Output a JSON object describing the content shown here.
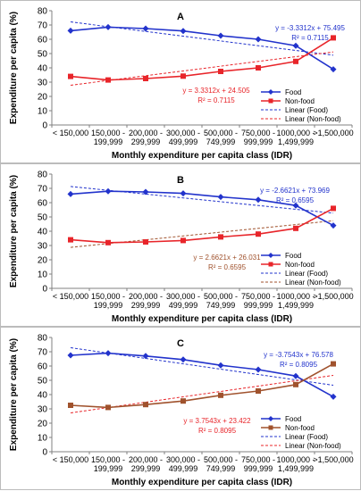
{
  "chart_data": [
    {
      "type": "line",
      "panel_label": "A",
      "categories": [
        "< 150,000",
        "150,000 -|199,999",
        "200,000 -|299,999",
        "300,000 -|499,999",
        "500,000 -|749,999",
        "750,000 -|999,999",
        "1000,000 -|1,499,999",
        ">1,500,000"
      ],
      "xlabel": "Monthly expenditure per capita class (IDR)",
      "ylabel": "Expenditure per capita (%)",
      "ylim": [
        0,
        80
      ],
      "yticks": [
        0,
        10,
        20,
        30,
        40,
        50,
        60,
        70,
        80
      ],
      "grid": false,
      "legend_position": "bottom-right",
      "series": [
        {
          "name": "Food",
          "color": "#2233cc",
          "marker": "diamond",
          "values": [
            66,
            68.5,
            67.5,
            65.8,
            62.5,
            60,
            55.5,
            39
          ]
        },
        {
          "name": "Non-food",
          "color": "#e8252a",
          "marker": "square",
          "values": [
            34,
            31.5,
            32.5,
            34.2,
            37.5,
            40,
            44.5,
            61
          ]
        }
      ],
      "trendlines": [
        {
          "name": "Linear (Food)",
          "color": "#2233cc",
          "slope": -3.3312,
          "intercept": 75.495,
          "equation": "y = -3.3312x + 75.495",
          "r2": "R² = 0.7115"
        },
        {
          "name": "Linear (Non-food)",
          "color": "#e8252a",
          "slope": 3.3312,
          "intercept": 24.505,
          "equation": "y = 3.3312x + 24.505",
          "r2": "R² = 0.7115"
        }
      ]
    },
    {
      "type": "line",
      "panel_label": "B",
      "categories": [
        "< 150,000",
        "150,000 -|199,999",
        "200,000 -|299,999",
        "300,000 -|499,999",
        "500,000 -|749,999",
        "750,000 -|999,999",
        "1000,000 -|1,499,999",
        ">1,500,000"
      ],
      "xlabel": "Monthly expenditure per capita class (IDR)",
      "ylabel": "Expenditure per capita (%)",
      "ylim": [
        0,
        80
      ],
      "yticks": [
        0,
        10,
        20,
        30,
        40,
        50,
        60,
        70,
        80
      ],
      "grid": false,
      "legend_position": "bottom-right",
      "series": [
        {
          "name": "Food",
          "color": "#2233cc",
          "marker": "diamond",
          "values": [
            66,
            68,
            67.5,
            66.5,
            64,
            62,
            58,
            44
          ]
        },
        {
          "name": "Non-food",
          "color": "#e8252a",
          "marker": "square",
          "values": [
            34,
            32,
            32.5,
            33.5,
            36,
            38,
            42,
            56
          ]
        }
      ],
      "trendlines": [
        {
          "name": "Linear (Food)",
          "color": "#2233cc",
          "slope": -2.6621,
          "intercept": 73.969,
          "equation": "y = -2.6621x + 73.969",
          "r2": "R² = 0.6595"
        },
        {
          "name": "Linear (Non-food)",
          "color": "#a0522d",
          "slope": 2.6621,
          "intercept": 26.031,
          "equation": "y = 2.6621x + 26.031",
          "r2": "R² = 0.6595"
        }
      ]
    },
    {
      "type": "line",
      "panel_label": "C",
      "categories": [
        "< 150,000",
        "150,000 -|199,999",
        "200,000 -|299,999",
        "300,000 -|499,999",
        "500,000 -|749,999",
        "750,000 -|999,999",
        "1000,000 -|1,499,999",
        ">1,500,000"
      ],
      "xlabel": "Monthly expenditure per capita class (IDR)",
      "ylabel": "Expenditure per capita (%)",
      "ylim": [
        0,
        80
      ],
      "yticks": [
        0,
        10,
        20,
        30,
        40,
        50,
        60,
        70,
        80
      ],
      "grid": false,
      "legend_position": "bottom-right",
      "series": [
        {
          "name": "Food",
          "color": "#2233cc",
          "marker": "diamond",
          "values": [
            67.5,
            69,
            67,
            64.5,
            60.5,
            57.5,
            53,
            38.5
          ]
        },
        {
          "name": "Non-food",
          "color": "#a0522d",
          "marker": "square",
          "values": [
            32.5,
            31,
            33,
            35.5,
            39.5,
            42.5,
            47,
            61.5
          ]
        }
      ],
      "trendlines": [
        {
          "name": "Linear (Food)",
          "color": "#2233cc",
          "slope": -3.7543,
          "intercept": 76.578,
          "equation": "y = -3.7543x + 76.578",
          "r2": "R² = 0.8095"
        },
        {
          "name": "Linear (Non-food)",
          "color": "#e8252a",
          "slope": 3.7543,
          "intercept": 23.422,
          "equation": "y = 3.7543x + 23.422",
          "r2": "R² = 0.8095"
        }
      ]
    }
  ]
}
